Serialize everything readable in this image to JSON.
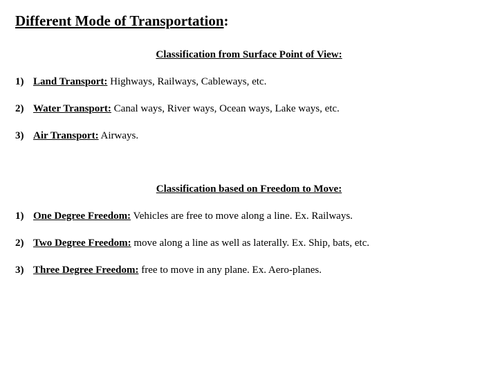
{
  "title_main": "Different Mode of Transportation",
  "title_colon": ":",
  "section1": {
    "heading": "Classification from Surface Point of View:",
    "items": [
      {
        "num": "1)",
        "label": "Land Transport:",
        "desc": " Highways, Railways, Cableways, etc."
      },
      {
        "num": "2)",
        "label": "Water Transport:",
        "desc": " Canal ways, River ways, Ocean ways, Lake ways, etc."
      },
      {
        "num": "3)",
        "label": "Air Transport:",
        "desc": " Airways."
      }
    ]
  },
  "section2": {
    "heading": "Classification based on Freedom to Move:",
    "items": [
      {
        "num": "1)",
        "label": "One Degree Freedom:",
        "desc": " Vehicles are free to move along a line. Ex. Railways."
      },
      {
        "num": "2)",
        "label": "Two Degree Freedom:",
        "desc": " move along a line as well as laterally. Ex. Ship, bats, etc."
      },
      {
        "num": "3)",
        "label": "Three Degree Freedom:",
        "desc": " free to move in any plane. Ex. Aero-planes."
      }
    ]
  }
}
